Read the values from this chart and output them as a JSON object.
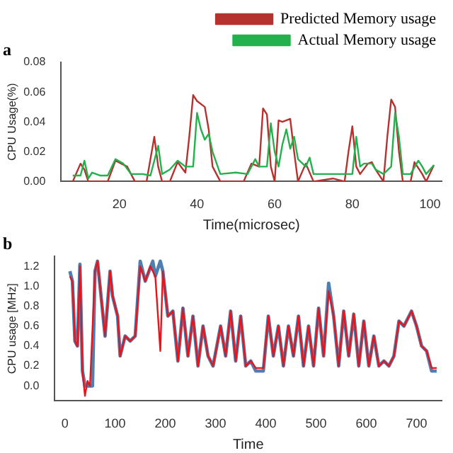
{
  "chart_data": [
    {
      "type": "line",
      "xlabel": "Time(microsec)",
      "ylabel": "CPU Usage(%)",
      "annotations": [
        "a"
      ],
      "legend": "top right",
      "grid": false,
      "marker": "none",
      "line_style": "solid",
      "xlim": [
        5,
        103
      ],
      "ylim": [
        0,
        0.08
      ],
      "xticks": [
        20,
        40,
        60,
        80,
        100
      ],
      "yticks": [
        {
          "value": 0,
          "label": "0.00"
        },
        {
          "value": 0.02,
          "label": "0.02"
        },
        {
          "value": 0.04,
          "label": "0.04"
        },
        {
          "value": 0.06,
          "label": "0.06"
        },
        {
          "value": 0.08,
          "label": "0.08"
        }
      ],
      "series": [
        {
          "name": "Predicted Memory usage",
          "color": "#b5322f",
          "x": [
            8,
            10,
            11,
            12,
            15,
            17,
            19,
            22,
            24,
            27,
            29,
            30,
            31,
            33,
            35,
            37,
            38,
            39,
            40,
            42,
            43,
            44,
            46,
            50,
            52,
            54,
            56,
            57,
            58,
            59,
            60,
            61,
            62,
            64,
            65,
            66,
            68,
            70,
            75,
            78,
            79,
            80,
            81,
            82,
            84,
            85,
            86,
            88,
            89,
            90,
            91,
            92,
            93,
            95,
            96,
            98,
            99,
            101
          ],
          "values": [
            0,
            0.012,
            0.008,
            0,
            0,
            0,
            0.014,
            0.01,
            0,
            0,
            0.03,
            0.01,
            0,
            0,
            0.013,
            0.006,
            0.03,
            0.058,
            0.054,
            0.05,
            0.035,
            0.01,
            0,
            0,
            0,
            0.012,
            0.01,
            0.049,
            0.045,
            0.01,
            0,
            0.041,
            0.04,
            0.042,
            0.02,
            0,
            0.012,
            0,
            0.002,
            0,
            0.02,
            0.037,
            0.01,
            0.005,
            0.012,
            0.013,
            0.008,
            0,
            0.03,
            0.055,
            0.05,
            0.02,
            0,
            0,
            0.013,
            0.005,
            0,
            0.011
          ]
        },
        {
          "name": "Actual Memory usage",
          "color": "#22b14c",
          "x": [
            8,
            10,
            11,
            12,
            13,
            15,
            17,
            19,
            21,
            23,
            26,
            28,
            30,
            31,
            33,
            35,
            37,
            39,
            40,
            41,
            42,
            43,
            44,
            46,
            50,
            53,
            55,
            56,
            58,
            59,
            60,
            61,
            62,
            63,
            64,
            65,
            66,
            68,
            69,
            70,
            72,
            79,
            80,
            81,
            82,
            83,
            85,
            86,
            88,
            90,
            91,
            92,
            93,
            95,
            97,
            98,
            99,
            101
          ],
          "values": [
            0.004,
            0.004,
            0.014,
            0.002,
            0.006,
            0.004,
            0.004,
            0.015,
            0.012,
            0.005,
            0.005,
            0.004,
            0.024,
            0.005,
            0.008,
            0.014,
            0.01,
            0.01,
            0.046,
            0.035,
            0.028,
            0.032,
            0.02,
            0.005,
            0.006,
            0.005,
            0.015,
            0.01,
            0.01,
            0.039,
            0.02,
            0.01,
            0.025,
            0.035,
            0.022,
            0.03,
            0.015,
            0.01,
            0.016,
            0.005,
            0.005,
            0.005,
            0.005,
            0.03,
            0.01,
            0.012,
            0.012,
            0.008,
            0.005,
            0.01,
            0.046,
            0.03,
            0.005,
            0.005,
            0.014,
            0.01,
            0.005,
            0.011
          ]
        }
      ]
    },
    {
      "type": "line",
      "xlabel": "Time",
      "ylabel": "CPU usage [MHz]",
      "annotations": [
        "b"
      ],
      "legend": false,
      "grid": false,
      "marker": "none",
      "line_style": "solid",
      "xlim": [
        -20,
        750
      ],
      "ylim": [
        -0.15,
        1.3
      ],
      "xticks": [
        0,
        100,
        200,
        300,
        400,
        500,
        600,
        700
      ],
      "yticks": [
        {
          "value": 0,
          "label": "0.0"
        },
        {
          "value": 0.2,
          "label": "0.2"
        },
        {
          "value": 0.4,
          "label": "0.4"
        },
        {
          "value": 0.6,
          "label": "0.6"
        },
        {
          "value": 0.8,
          "label": "0.8"
        },
        {
          "value": 1,
          "label": "1.0"
        },
        {
          "value": 1.2,
          "label": "1.2"
        }
      ],
      "series": [
        {
          "color": "#4f7fb0",
          "x": [
            10,
            15,
            20,
            25,
            30,
            35,
            40,
            45,
            55,
            60,
            65,
            70,
            80,
            90,
            95,
            105,
            110,
            120,
            130,
            140,
            150,
            160,
            175,
            180,
            190,
            195,
            205,
            215,
            225,
            235,
            245,
            255,
            265,
            275,
            285,
            295,
            310,
            320,
            330,
            340,
            350,
            360,
            370,
            380,
            395,
            405,
            415,
            425,
            435,
            445,
            455,
            465,
            475,
            485,
            495,
            505,
            515,
            525,
            535,
            545,
            555,
            565,
            575,
            585,
            595,
            605,
            615,
            625,
            635,
            645,
            655,
            665,
            675,
            690,
            700,
            710,
            720,
            730,
            740
          ],
          "values": [
            1.15,
            1.05,
            0.45,
            0.4,
            1.22,
            0.15,
            0,
            0,
            0,
            1.15,
            1.25,
            1,
            0.5,
            1.15,
            0.9,
            0.7,
            0.3,
            0.5,
            0.45,
            0.5,
            1.25,
            1.05,
            1.25,
            1.1,
            1.25,
            1.15,
            0.7,
            0.75,
            0.25,
            0.78,
            0.3,
            0.7,
            0.2,
            0.6,
            0.3,
            0.2,
            0.6,
            0.3,
            0.75,
            0.25,
            0.7,
            0.2,
            0.25,
            0.15,
            0.15,
            0.7,
            0.3,
            0.6,
            0.2,
            0.6,
            0.3,
            0.7,
            0.2,
            0.6,
            0.2,
            0.78,
            0.3,
            1.03,
            0.7,
            0.2,
            0.75,
            0.3,
            0.72,
            0.2,
            0.65,
            0.2,
            0.5,
            0.2,
            0.25,
            0.2,
            0.3,
            0.65,
            0.6,
            0.75,
            0.6,
            0.4,
            0.35,
            0.15,
            0.15
          ]
        },
        {
          "color": "#e8141c",
          "x": [
            10,
            15,
            20,
            25,
            30,
            35,
            40,
            45,
            50,
            60,
            65,
            70,
            80,
            90,
            95,
            105,
            110,
            120,
            130,
            140,
            150,
            160,
            170,
            180,
            190,
            195,
            205,
            215,
            225,
            235,
            245,
            255,
            265,
            275,
            285,
            295,
            310,
            320,
            330,
            340,
            350,
            360,
            370,
            380,
            395,
            405,
            415,
            425,
            435,
            445,
            455,
            465,
            475,
            485,
            495,
            505,
            515,
            525,
            535,
            545,
            555,
            565,
            575,
            585,
            595,
            605,
            615,
            625,
            635,
            645,
            655,
            665,
            675,
            690,
            700,
            710,
            720,
            730,
            740
          ],
          "values": [
            1.1,
            1.05,
            0.45,
            0.4,
            1.2,
            0.15,
            -0.1,
            0.05,
            0,
            1.15,
            1.25,
            1,
            0.5,
            1.15,
            0.9,
            0.7,
            0.3,
            0.5,
            0.45,
            0.5,
            1.2,
            1.05,
            1.2,
            1.1,
            0.35,
            1.15,
            0.7,
            0.75,
            0.25,
            0.78,
            0.3,
            0.7,
            0.2,
            0.6,
            0.3,
            0.2,
            0.6,
            0.3,
            0.75,
            0.25,
            0.7,
            0.2,
            0.25,
            0.18,
            0.18,
            0.7,
            0.3,
            0.6,
            0.2,
            0.6,
            0.3,
            0.7,
            0.2,
            0.6,
            0.2,
            0.78,
            0.3,
            0.95,
            0.7,
            0.2,
            0.75,
            0.3,
            0.72,
            0.2,
            0.65,
            0.2,
            0.5,
            0.2,
            0.25,
            0.2,
            0.3,
            0.65,
            0.6,
            0.75,
            0.6,
            0.4,
            0.35,
            0.18,
            0.18
          ]
        }
      ]
    }
  ]
}
